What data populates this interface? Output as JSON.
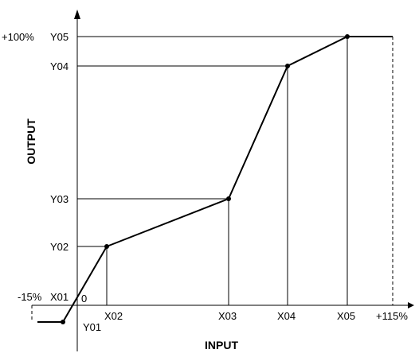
{
  "chart_data": {
    "type": "line",
    "title": "",
    "xlabel": "INPUT",
    "ylabel": "OUTPUT",
    "points": [
      {
        "x_label": "X01",
        "y_label": "Y01"
      },
      {
        "x_label": "X02",
        "y_label": "Y02"
      },
      {
        "x_label": "X03",
        "y_label": "Y03"
      },
      {
        "x_label": "X04",
        "y_label": "Y04"
      },
      {
        "x_label": "X05",
        "y_label": "Y05"
      }
    ],
    "x_start_label": "-15%",
    "x_end_label": "+115%",
    "y_top_label": "+100%",
    "origin_label": "0",
    "x01_label": "X01"
  }
}
